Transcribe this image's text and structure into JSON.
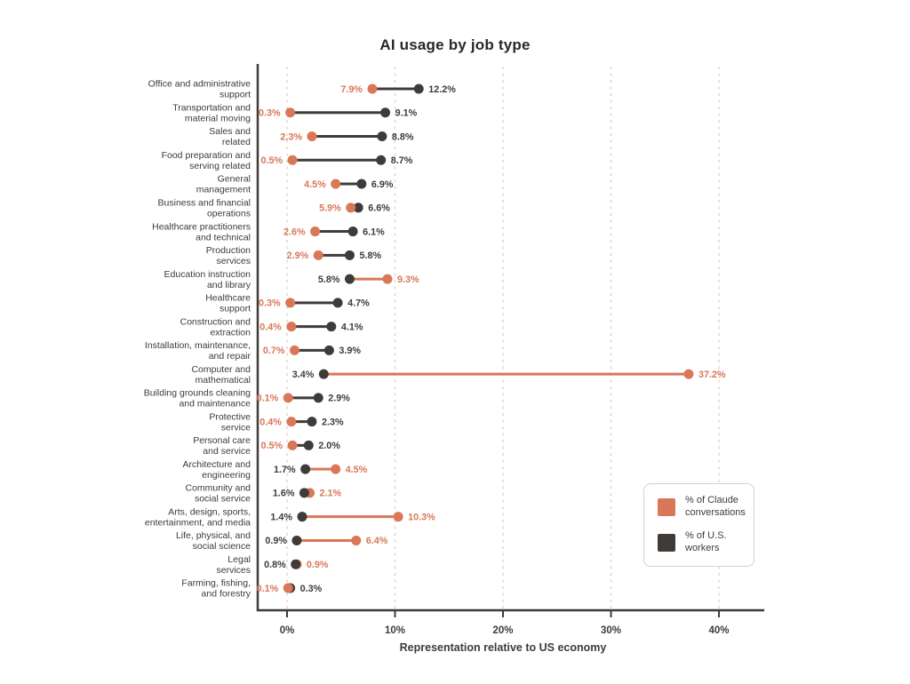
{
  "title": "AI usage by job type",
  "xlabel": "Representation relative to US economy",
  "colors": {
    "claude": "#d97757",
    "us": "#3f3b38",
    "grid": "#e5d5c9",
    "axis": "#3f3b38",
    "text": "#3f3b38",
    "title_text": "#2b2723"
  },
  "legend": {
    "items": [
      {
        "label": "% of Claude conversations",
        "color_key": "claude"
      },
      {
        "label": "% of U.S. workers",
        "color_key": "us"
      }
    ]
  },
  "chart_data": {
    "type": "dumbbell",
    "title": "AI usage by job type",
    "xlabel": "Representation relative to US economy",
    "unit": "%",
    "x_tick_labels": [
      "0%",
      "10%",
      "20%",
      "30%",
      "40%"
    ],
    "x_tick_values": [
      0,
      10,
      20,
      30,
      40
    ],
    "xlim": [
      0,
      44
    ],
    "grid": "dashed-vertical",
    "legend_position": "lower-right",
    "series_names": [
      "% of Claude conversations",
      "% of U.S. workers"
    ],
    "rows": [
      {
        "label_lines": [
          "Office and administrative",
          "support"
        ],
        "claude_pct": 7.9,
        "us_pct": 12.2
      },
      {
        "label_lines": [
          "Transportation and",
          "material moving"
        ],
        "claude_pct": 0.3,
        "us_pct": 9.1
      },
      {
        "label_lines": [
          "Sales and",
          "related"
        ],
        "claude_pct": 2.3,
        "us_pct": 8.8
      },
      {
        "label_lines": [
          "Food preparation and",
          "serving related"
        ],
        "claude_pct": 0.5,
        "us_pct": 8.7
      },
      {
        "label_lines": [
          "General",
          "management"
        ],
        "claude_pct": 4.5,
        "us_pct": 6.9
      },
      {
        "label_lines": [
          "Business and financial",
          "operations"
        ],
        "claude_pct": 5.9,
        "us_pct": 6.6
      },
      {
        "label_lines": [
          "Healthcare practitioners",
          "and technical"
        ],
        "claude_pct": 2.6,
        "us_pct": 6.1
      },
      {
        "label_lines": [
          "Production",
          "services"
        ],
        "claude_pct": 2.9,
        "us_pct": 5.8
      },
      {
        "label_lines": [
          "Education instruction",
          "and library"
        ],
        "claude_pct": 9.3,
        "us_pct": 5.8
      },
      {
        "label_lines": [
          "Healthcare",
          "support"
        ],
        "claude_pct": 0.3,
        "us_pct": 4.7
      },
      {
        "label_lines": [
          "Construction and",
          "extraction"
        ],
        "claude_pct": 0.4,
        "us_pct": 4.1
      },
      {
        "label_lines": [
          "Installation, maintenance,",
          "and repair"
        ],
        "claude_pct": 0.7,
        "us_pct": 3.9
      },
      {
        "label_lines": [
          "Computer and",
          "mathematical"
        ],
        "claude_pct": 37.2,
        "us_pct": 3.4
      },
      {
        "label_lines": [
          "Building grounds cleaning",
          "and maintenance"
        ],
        "claude_pct": 0.1,
        "us_pct": 2.9
      },
      {
        "label_lines": [
          "Protective",
          "service"
        ],
        "claude_pct": 0.4,
        "us_pct": 2.3
      },
      {
        "label_lines": [
          "Personal care",
          "and service"
        ],
        "claude_pct": 0.5,
        "us_pct": 2.0
      },
      {
        "label_lines": [
          "Architecture and",
          "engineering"
        ],
        "claude_pct": 4.5,
        "us_pct": 1.7
      },
      {
        "label_lines": [
          "Community and",
          "social service"
        ],
        "claude_pct": 2.1,
        "us_pct": 1.6
      },
      {
        "label_lines": [
          "Arts, design, sports,",
          "entertainment, and media"
        ],
        "claude_pct": 10.3,
        "us_pct": 1.4
      },
      {
        "label_lines": [
          "Life, physical, and",
          "social science"
        ],
        "claude_pct": 6.4,
        "us_pct": 0.9
      },
      {
        "label_lines": [
          "Legal",
          "services"
        ],
        "claude_pct": 0.9,
        "us_pct": 0.8
      },
      {
        "label_lines": [
          "Farming, fishing,",
          "and forestry"
        ],
        "claude_pct": 0.1,
        "us_pct": 0.3
      }
    ]
  }
}
